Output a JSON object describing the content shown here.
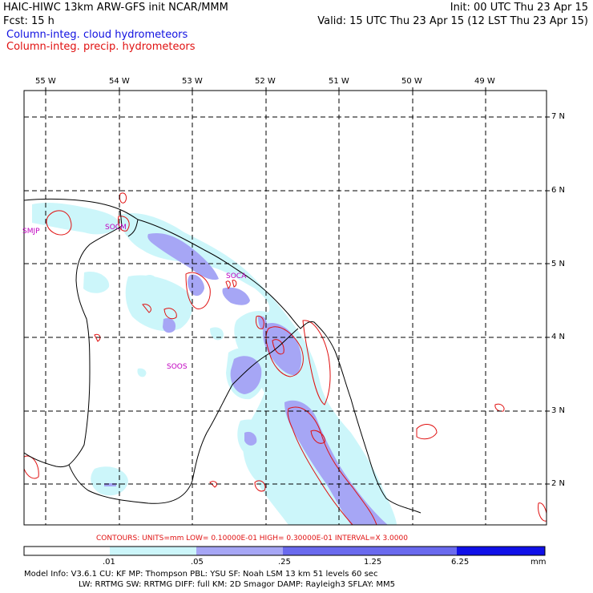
{
  "header": {
    "line1_left": "HAIC-HIWC 13km ARW-GFS init   NCAR/MMM",
    "line1_right": "Init: 00 UTC Thu 23 Apr 15",
    "line2_left": "Fcst:   15 h",
    "line2_right": "Valid: 15 UTC Thu 23 Apr 15 (12 LST Thu 23 Apr 15)",
    "field1": "Column-integ. cloud hydrometeors",
    "field2": "Column-integ. precip. hydrometeors"
  },
  "map": {
    "lon_labels": [
      "55 W",
      "54 W",
      "53 W",
      "52 W",
      "51 W",
      "50 W",
      "49 W"
    ],
    "lat_labels": [
      "7 N",
      "6 N",
      "5 N",
      "4 N",
      "3 N",
      "2 N"
    ],
    "stations": [
      "SMJP",
      "SOCM",
      "SOCA",
      "SOOS"
    ]
  },
  "contour_info": "CONTOURS:  UNITS=mm  LOW= 0.10000E-01  HIGH= 0.30000E-01  INTERVAL=X  3.0000",
  "colorbar": {
    "labels": [
      ".01",
      ".05",
      ".25",
      "1.25",
      "6.25"
    ],
    "units": "mm",
    "colors": [
      "#ffffff",
      "#ccf6fa",
      "#a6a6f5",
      "#6a6aee",
      "#1010e8"
    ]
  },
  "footer": {
    "line1": "Model Info: V3.6.1    CU: KF     MP: Thompson    PBL: YSU      SF: Noah LSM     13 km    51 levels   60 sec",
    "line2": "LW: RRTMG    SW: RRTMG   DIFF: full    KM: 2D Smagor DAMP: Rayleigh3  SFLAY: MM5"
  }
}
